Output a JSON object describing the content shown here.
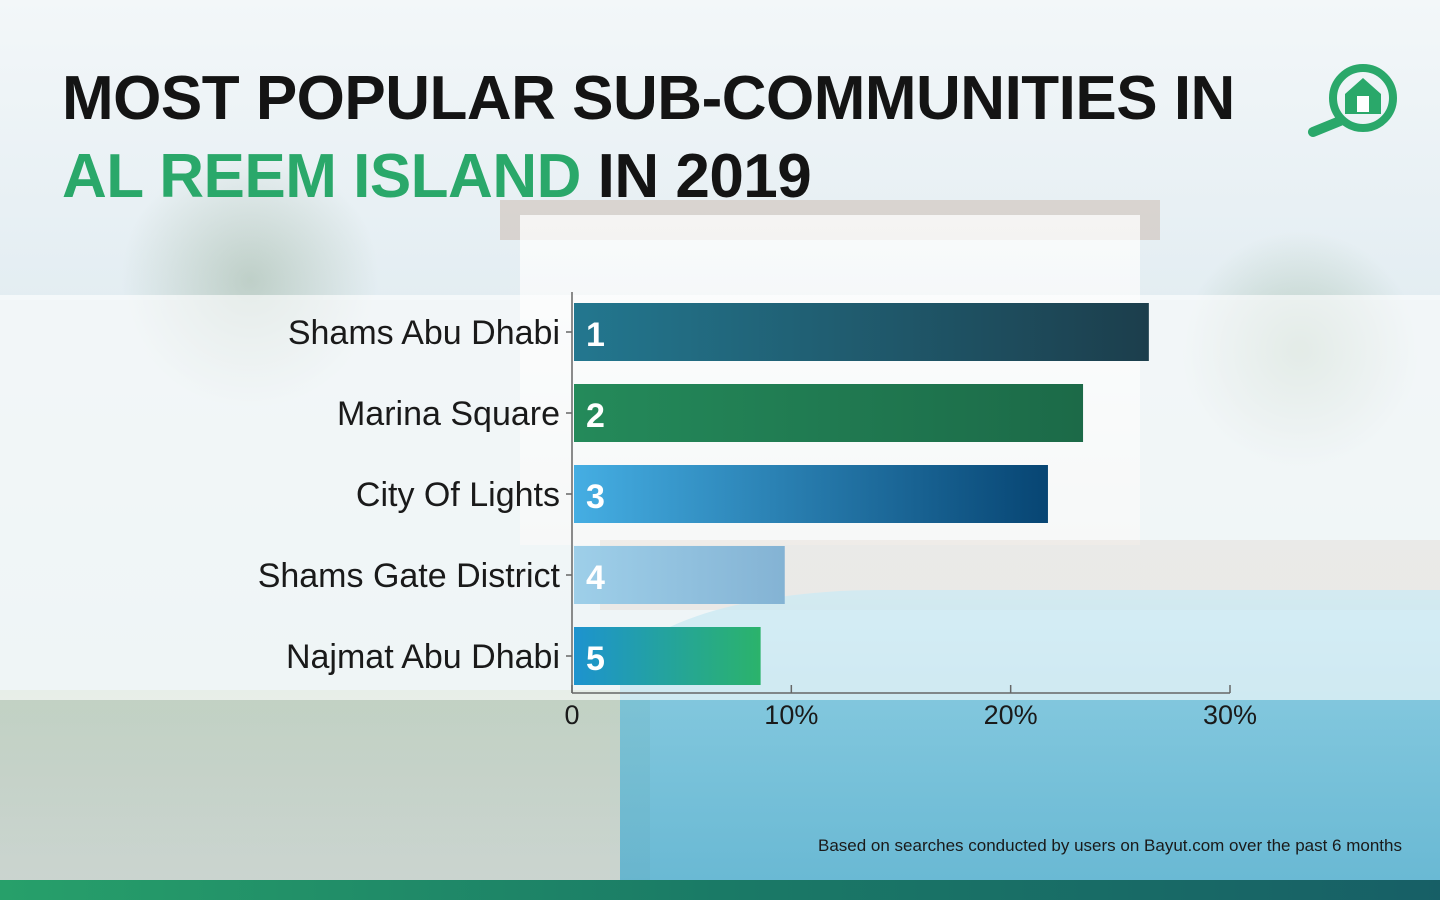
{
  "title": {
    "line1": "MOST POPULAR SUB-COMMUNITIES IN",
    "accent": "AL REEM ISLAND",
    "rest": " IN 2019"
  },
  "colors": {
    "title_text": "#141414",
    "accent": "#2aa86a",
    "bottom_bar": "#1a7a66"
  },
  "logo": {
    "icon": "magnifier-house-icon",
    "color": "#2aa86a"
  },
  "footnote": "Based on searches conducted by users on Bayut.com over the past 6 months",
  "chart_data": {
    "type": "bar",
    "orientation": "horizontal",
    "categories": [
      "Shams Abu Dhabi",
      "Marina Square",
      "City Of Lights",
      "Shams Gate District",
      "Najmat Abu Dhabi"
    ],
    "values": [
      26.3,
      23.3,
      21.7,
      9.7,
      8.6
    ],
    "ranks": [
      "1",
      "2",
      "3",
      "4",
      "5"
    ],
    "bar_gradients": [
      [
        "#23778f",
        "#1c3e4c"
      ],
      [
        "#248a5a",
        "#1c6a48"
      ],
      [
        "#45aee3",
        "#074573"
      ],
      [
        "#9ecfe9",
        "#84b3d4"
      ],
      [
        "#1d93cf",
        "#2bb36b"
      ]
    ],
    "xlim": [
      0,
      30
    ],
    "xticks": [
      0,
      10,
      20,
      30
    ],
    "xtick_labels": [
      "0",
      "10%",
      "20%",
      "30%"
    ],
    "unit": "%",
    "grid": false,
    "xlabel": "",
    "ylabel": ""
  }
}
